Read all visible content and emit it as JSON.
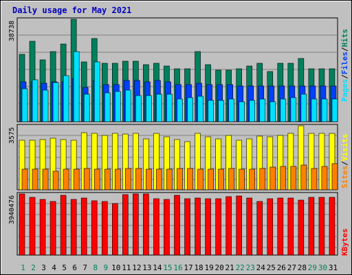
{
  "title": "Daily usage for May 2021",
  "colors": {
    "background": "#c0c0c0",
    "panel": "#c0c0c0",
    "grid": "#808080",
    "hits": "#00805c",
    "files": "#0040ff",
    "pages": "#00e0ff",
    "visits": "#ffff00",
    "sites": "#ff8000",
    "kbytes": "#ff0000",
    "title": "#0000c0",
    "day_weekday": "#000000",
    "day_weekend": "#00805c",
    "separator": "#000000"
  },
  "chart_data": [
    {
      "type": "bar",
      "panel": "hits_files_pages",
      "categories": [
        "1",
        "2",
        "3",
        "4",
        "5",
        "6",
        "7",
        "8",
        "9",
        "10",
        "11",
        "12",
        "13",
        "14",
        "15",
        "16",
        "17",
        "18",
        "19",
        "20",
        "21",
        "22",
        "23",
        "24",
        "25",
        "26",
        "27",
        "28",
        "29",
        "30",
        "31"
      ],
      "weekend_days": [
        "1",
        "2",
        "8",
        "9",
        "15",
        "16",
        "22",
        "23",
        "29",
        "30"
      ],
      "ytick_label": "38738",
      "ylim": [
        0,
        38738
      ],
      "legend_labels": [
        "Pages",
        "/",
        "Files",
        "/",
        "Hits"
      ],
      "series": [
        {
          "name": "Hits",
          "color": "#00805c",
          "values": [
            25500,
            30500,
            23500,
            26500,
            29500,
            38700,
            22500,
            31500,
            22000,
            22000,
            23000,
            23000,
            21500,
            22000,
            21000,
            20000,
            20000,
            26500,
            21500,
            19500,
            19500,
            20000,
            21000,
            22000,
            19000,
            22000,
            22000,
            24000,
            20000,
            20000,
            20000
          ]
        },
        {
          "name": "Files",
          "color": "#0040ff",
          "values": [
            15000,
            15000,
            14500,
            15000,
            15000,
            16500,
            13000,
            15500,
            14000,
            14000,
            15500,
            15500,
            15000,
            15500,
            15000,
            14000,
            14000,
            14500,
            14000,
            14000,
            14000,
            13500,
            13500,
            13500,
            13500,
            13500,
            13500,
            13500,
            13500,
            13500,
            13500
          ]
        },
        {
          "name": "Pages",
          "color": "#00e0ff",
          "values": [
            12500,
            15800,
            12000,
            14800,
            17500,
            26500,
            10500,
            22500,
            11000,
            11500,
            12000,
            10000,
            10000,
            10500,
            10500,
            8500,
            9000,
            9500,
            8000,
            8000,
            8500,
            7500,
            8000,
            8500,
            7500,
            8500,
            9000,
            10500,
            8500,
            8500,
            8500
          ]
        }
      ]
    },
    {
      "type": "bar",
      "panel": "visits_sites",
      "categories": [
        "1",
        "2",
        "3",
        "4",
        "5",
        "6",
        "7",
        "8",
        "9",
        "10",
        "11",
        "12",
        "13",
        "14",
        "15",
        "16",
        "17",
        "18",
        "19",
        "20",
        "21",
        "22",
        "23",
        "24",
        "25",
        "26",
        "27",
        "28",
        "29",
        "30",
        "31"
      ],
      "ytick_label": "3575",
      "ylim": [
        0,
        3575
      ],
      "legend_labels": [
        "Sites",
        "/",
        "Visits"
      ],
      "series": [
        {
          "name": "Visits",
          "color": "#ffff00",
          "values": [
            2750,
            2750,
            2800,
            2900,
            2800,
            2750,
            3200,
            3150,
            3050,
            3150,
            3100,
            3150,
            2850,
            3150,
            2950,
            2800,
            2700,
            3150,
            2950,
            2850,
            3050,
            2750,
            2850,
            3000,
            2950,
            3050,
            3150,
            3575,
            3150,
            3150,
            3150
          ]
        },
        {
          "name": "Sites",
          "color": "#ff8000",
          "values": [
            1150,
            1150,
            1150,
            1050,
            1150,
            1150,
            1200,
            1150,
            1150,
            1150,
            1200,
            1200,
            1150,
            1150,
            1150,
            1200,
            1200,
            1150,
            1150,
            1150,
            1200,
            1150,
            1150,
            1200,
            1250,
            1300,
            1300,
            1400,
            1200,
            1300,
            1450
          ]
        }
      ]
    },
    {
      "type": "bar",
      "panel": "kbytes",
      "categories": [
        "1",
        "2",
        "3",
        "4",
        "5",
        "6",
        "7",
        "8",
        "9",
        "10",
        "11",
        "12",
        "13",
        "14",
        "15",
        "16",
        "17",
        "18",
        "19",
        "20",
        "21",
        "22",
        "23",
        "24",
        "25",
        "26",
        "27",
        "28",
        "29",
        "30",
        "31"
      ],
      "ytick_label": "3940476",
      "ylim": [
        0,
        3940476
      ],
      "legend_labels": [
        "KBytes"
      ],
      "series": [
        {
          "name": "KBytes",
          "color": "#ff0000",
          "values": [
            3940476,
            3700000,
            3600000,
            3450000,
            3870000,
            3600000,
            3660000,
            3500000,
            3470000,
            3310000,
            3900000,
            3950000,
            3930000,
            3650000,
            3600000,
            3840000,
            3610000,
            3680000,
            3640000,
            3650000,
            3750000,
            3820000,
            3670000,
            3450000,
            3630000,
            3660000,
            3680000,
            3560000,
            3700000,
            3700000,
            3700000
          ]
        }
      ]
    }
  ]
}
